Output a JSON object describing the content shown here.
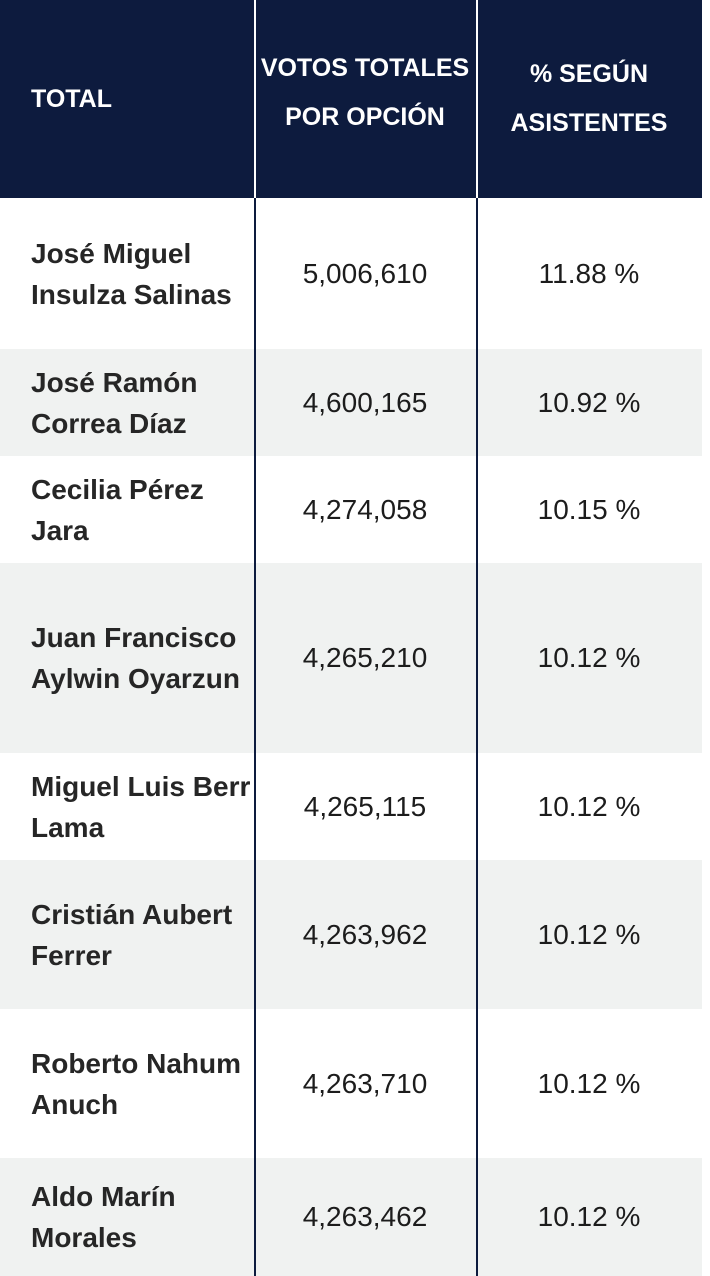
{
  "headers": {
    "total": "TOTAL",
    "votes": "VOTOS TOTALES POR OPCIÓN",
    "percent": "% SEGÚN ASISTENTES"
  },
  "rows": [
    {
      "name": "José Miguel Insulza Salinas",
      "votes": "5,006,610",
      "percent": "11.88 %"
    },
    {
      "name": "José Ramón Correa Díaz",
      "votes": "4,600,165",
      "percent": "10.92 %"
    },
    {
      "name": "Cecilia Pérez Jara",
      "votes": "4,274,058",
      "percent": "10.15 %"
    },
    {
      "name": "Juan Francisco Aylwin Oyarzun",
      "votes": "4,265,210",
      "percent": "10.12 %"
    },
    {
      "name": "Miguel Luis Berr Lama",
      "votes": "4,265,115",
      "percent": "10.12 %"
    },
    {
      "name": "Cristián Aubert Ferrer",
      "votes": "4,263,962",
      "percent": "10.12 %"
    },
    {
      "name": "Roberto Nahum Anuch",
      "votes": "4,263,710",
      "percent": "10.12 %"
    },
    {
      "name": "Aldo Marín Morales",
      "votes": "4,263,462",
      "percent": "10.12 %"
    }
  ],
  "colors": {
    "header_bg": "#0d1b3e",
    "row_alt_bg": "#f0f2f1",
    "text": "#1c1c1c"
  }
}
